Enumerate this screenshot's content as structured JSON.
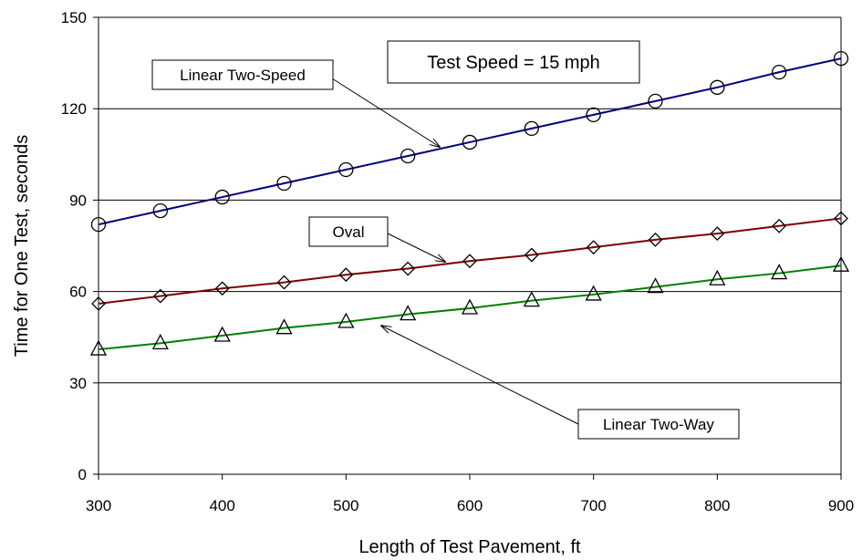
{
  "chart_data": {
    "type": "line",
    "title": "",
    "xlabel": "Length of Test Pavement, ft",
    "ylabel": "Time for One Test, seconds",
    "xlim": [
      300,
      900
    ],
    "ylim": [
      0,
      150
    ],
    "x_ticks": [
      300,
      400,
      500,
      600,
      700,
      800,
      900
    ],
    "y_ticks": [
      0,
      30,
      60,
      90,
      120,
      150
    ],
    "grid": "horizontal",
    "x": [
      300,
      350,
      400,
      450,
      500,
      550,
      600,
      650,
      700,
      750,
      800,
      850,
      900
    ],
    "series": [
      {
        "name": "Linear Two-Speed",
        "color": "#000080",
        "marker": "circle",
        "values": [
          82,
          86.5,
          91,
          95.5,
          100,
          104.5,
          109,
          113.5,
          118,
          122.5,
          127,
          132,
          136.5
        ]
      },
      {
        "name": "Oval",
        "color": "#800000",
        "marker": "diamond",
        "values": [
          56,
          58.5,
          61,
          63,
          65.5,
          67.5,
          70,
          72,
          74.5,
          77,
          79,
          81.5,
          84
        ]
      },
      {
        "name": "Linear Two-Way",
        "color": "#008000",
        "marker": "triangle",
        "values": [
          41,
          43,
          45.5,
          48,
          50,
          52.5,
          54.5,
          57,
          59,
          61.5,
          64,
          66,
          68.5
        ]
      }
    ],
    "annotations": [
      {
        "text": "Test Speed = 15 mph"
      }
    ]
  }
}
